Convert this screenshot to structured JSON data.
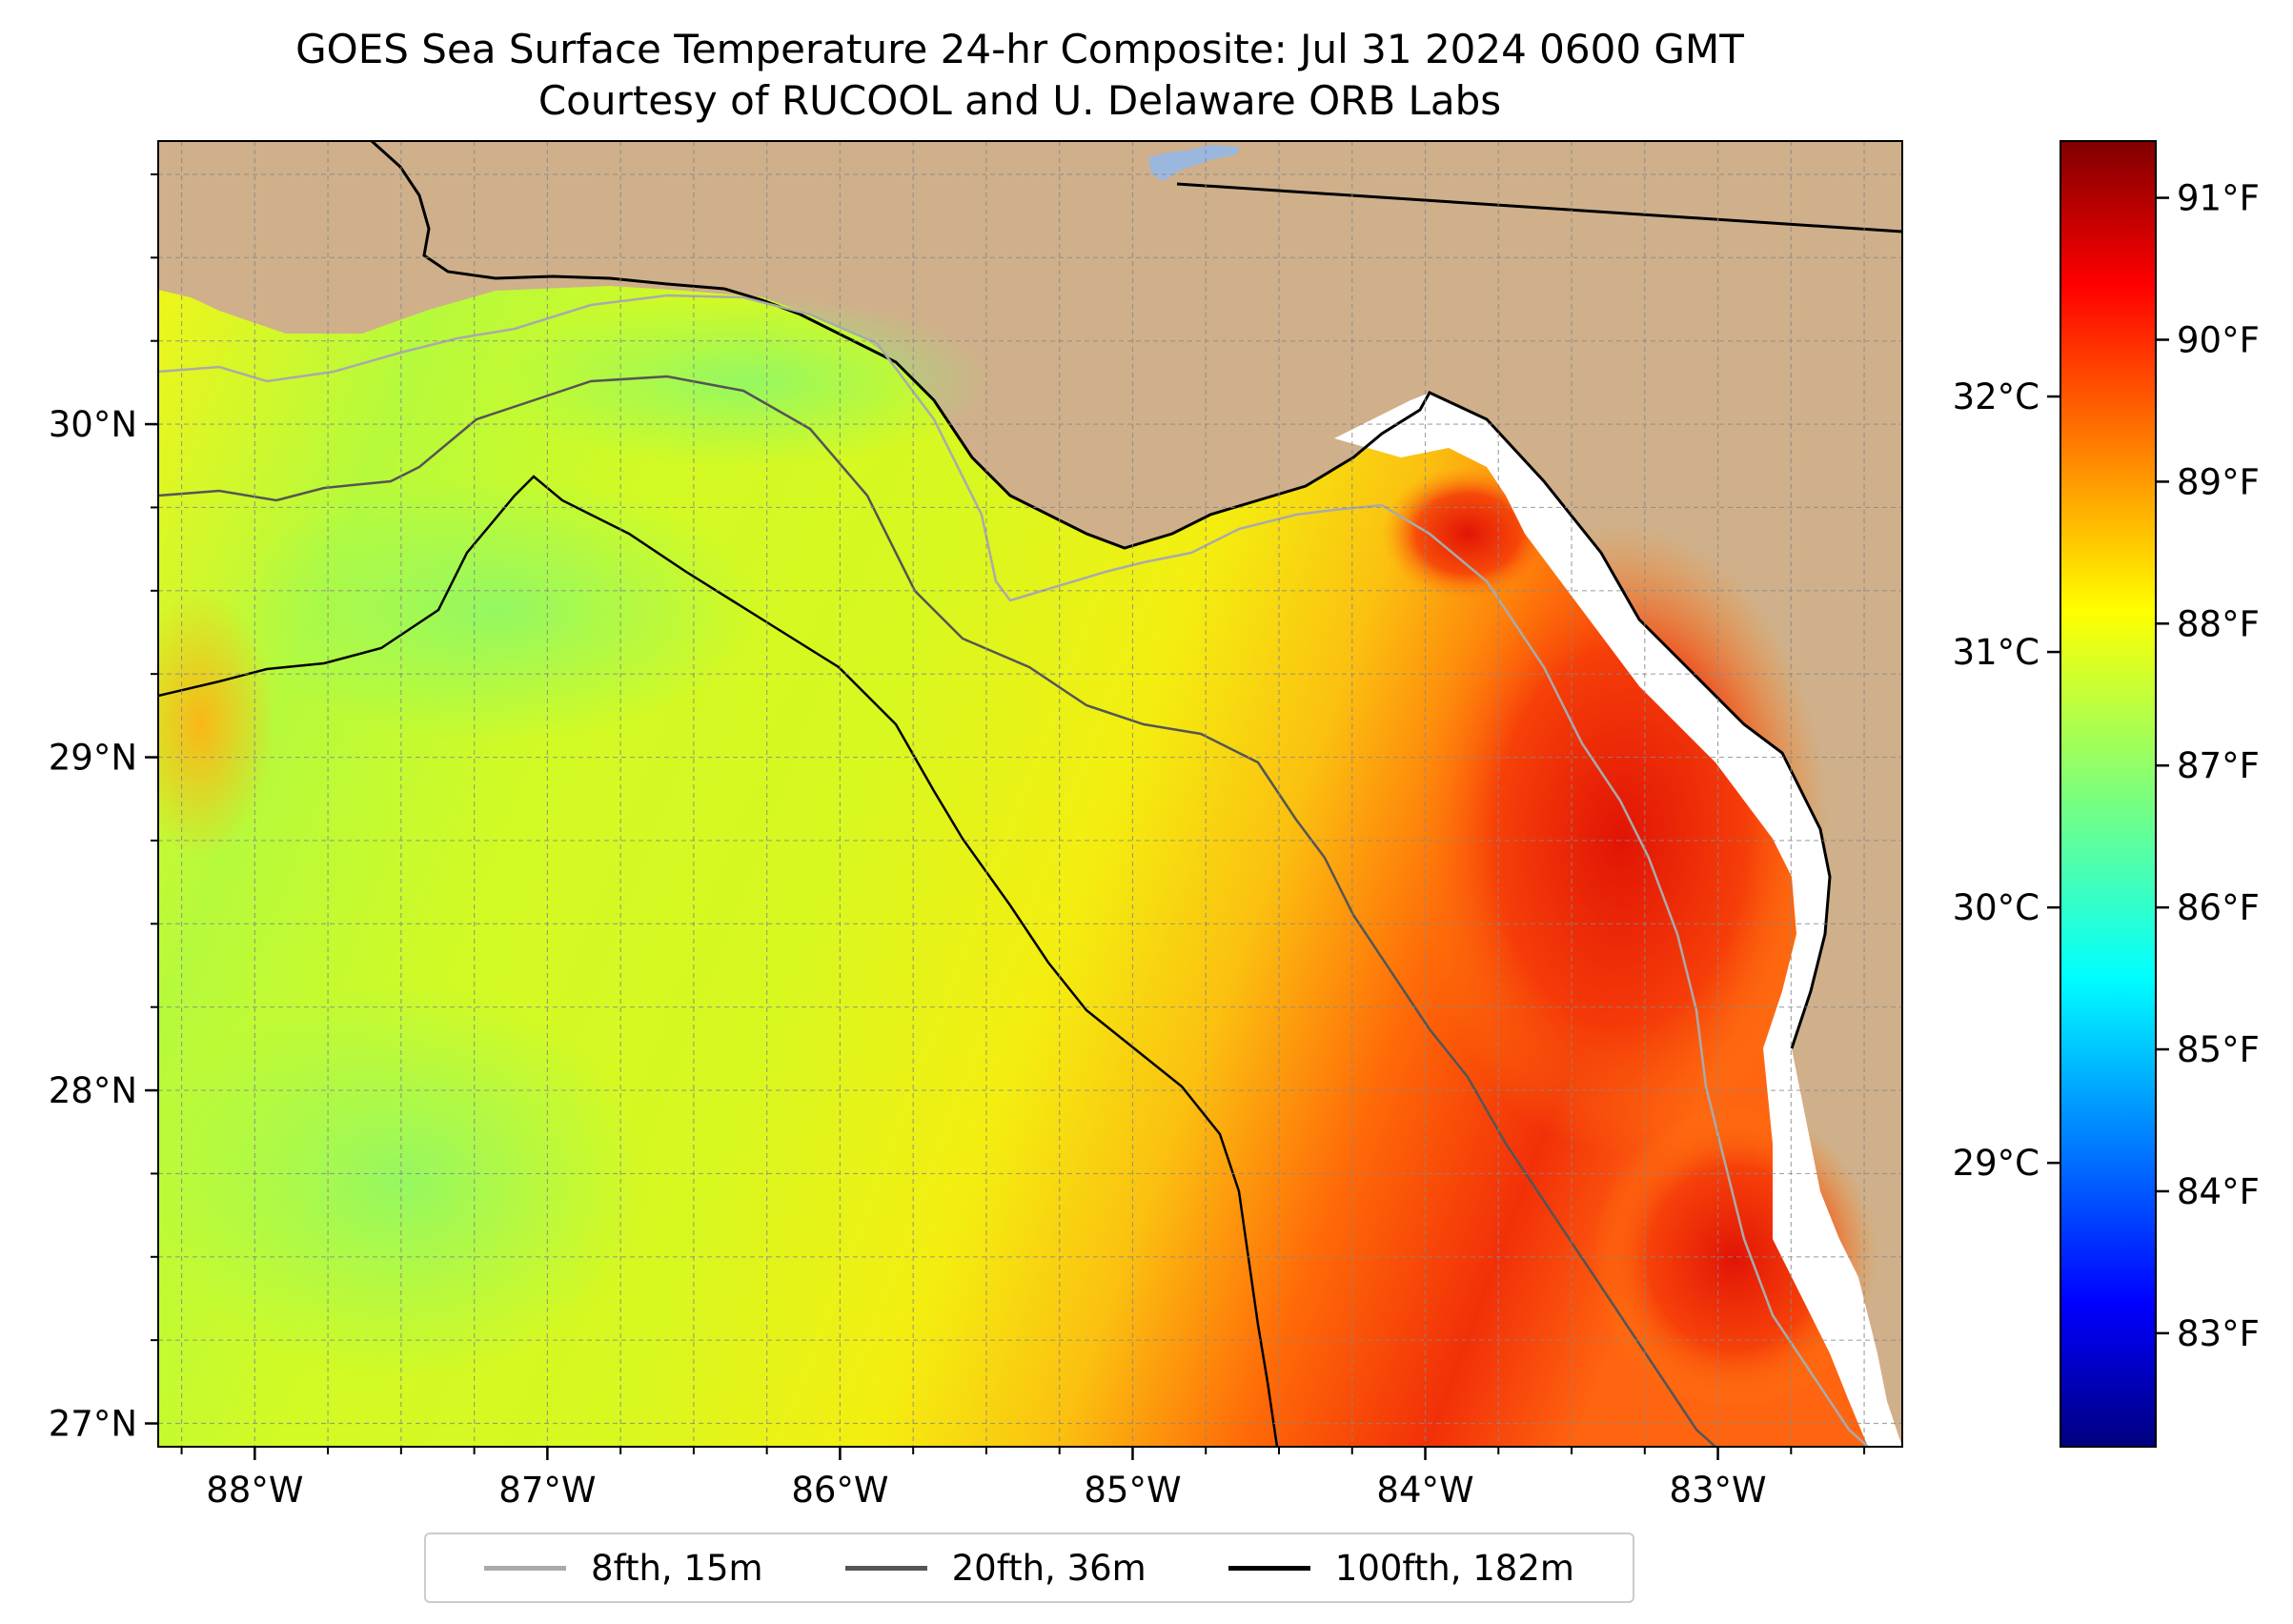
{
  "title": {
    "line1": "GOES Sea Surface Temperature 24-hr Composite: Jul 31 2024 0600 GMT",
    "line2": "Courtesy of RUCOOL and U. Delaware ORB Labs"
  },
  "map": {
    "extent": {
      "lon": [
        -88.33,
        -82.37
      ],
      "lat": [
        26.93,
        30.85
      ]
    },
    "lat_ticks": [
      {
        "value": 27,
        "label": "27°N"
      },
      {
        "value": 28,
        "label": "28°N"
      },
      {
        "value": 29,
        "label": "29°N"
      },
      {
        "value": 30,
        "label": "30°N"
      }
    ],
    "lon_ticks": [
      {
        "value": -88,
        "label": "88°W"
      },
      {
        "value": -87,
        "label": "87°W"
      },
      {
        "value": -86,
        "label": "86°W"
      },
      {
        "value": -85,
        "label": "85°W"
      },
      {
        "value": -84,
        "label": "84°W"
      },
      {
        "value": -83,
        "label": "83°W"
      }
    ],
    "gridlines": true,
    "land_color": "#cfb08a",
    "water_color": "#9bb7dd"
  },
  "colorbar": {
    "colormap": "jet",
    "f_ticks": [
      {
        "value": 83,
        "label": "83°F"
      },
      {
        "value": 84,
        "label": "84°F"
      },
      {
        "value": 85,
        "label": "85°F"
      },
      {
        "value": 86,
        "label": "86°F"
      },
      {
        "value": 87,
        "label": "87°F"
      },
      {
        "value": 88,
        "label": "88°F"
      },
      {
        "value": 89,
        "label": "89°F"
      },
      {
        "value": 90,
        "label": "90°F"
      },
      {
        "value": 91,
        "label": "91°F"
      }
    ],
    "c_ticks": [
      {
        "value": 29,
        "label": "29°C"
      },
      {
        "value": 30,
        "label": "30°C"
      },
      {
        "value": 31,
        "label": "31°C"
      },
      {
        "value": 32,
        "label": "32°C"
      }
    ]
  },
  "legend": {
    "items": [
      {
        "label": "8fth, 15m",
        "color": "#aaaaaa"
      },
      {
        "label": "20fth, 36m",
        "color": "#555555"
      },
      {
        "label": "100fth, 182m",
        "color": "#000000"
      }
    ]
  }
}
